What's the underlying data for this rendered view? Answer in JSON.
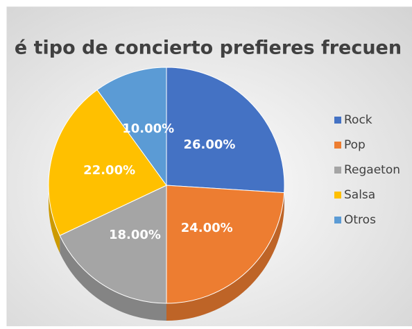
{
  "chart_data": {
    "type": "pie",
    "title": "é tipo de concierto prefieres frecuen",
    "categories": [
      "Rock",
      "Pop",
      "Regaeton",
      "Salsa",
      "Otros"
    ],
    "values": [
      26,
      24,
      18,
      22,
      10
    ],
    "value_labels": [
      "26.00%",
      "24.00%",
      "18.00%",
      "22.00%",
      "10.00%"
    ],
    "colors": [
      "#4472c4",
      "#ed7d31",
      "#a5a5a5",
      "#ffc000",
      "#5b9bd5"
    ],
    "legend": "right"
  }
}
